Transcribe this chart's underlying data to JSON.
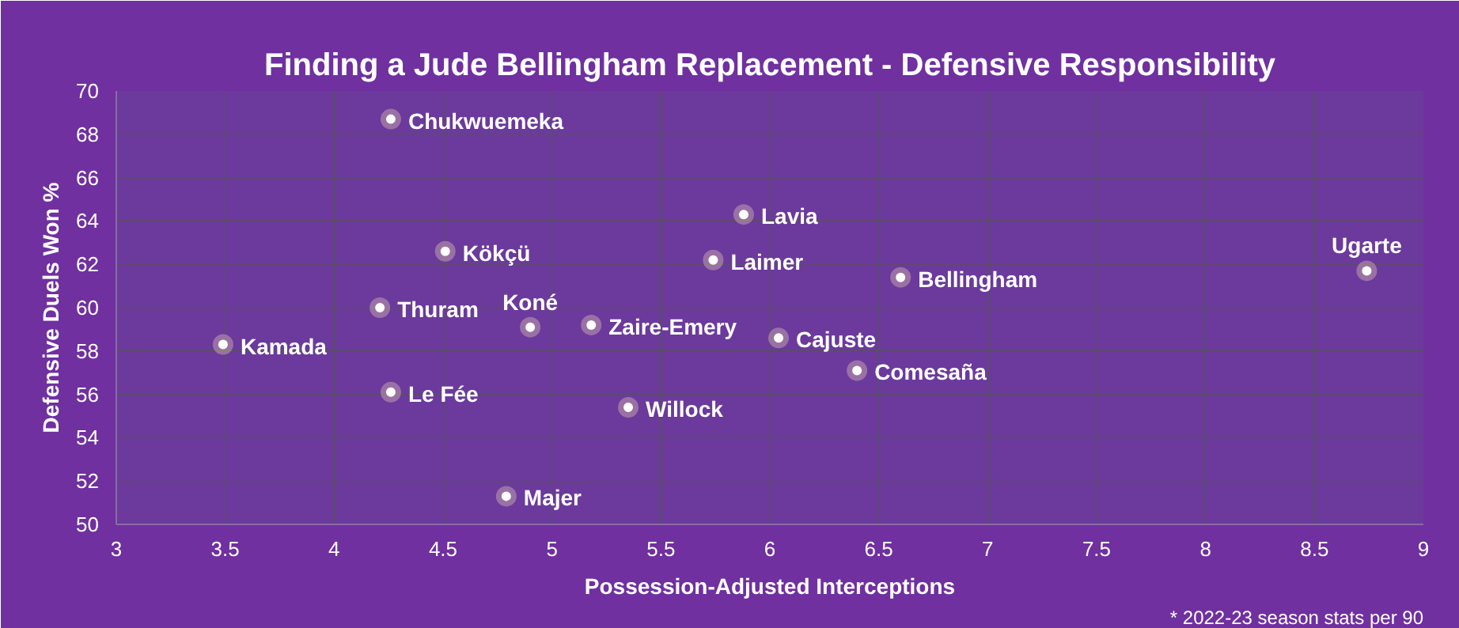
{
  "chart_data": {
    "type": "scatter",
    "title": "Finding a Jude Bellingham Replacement - Defensive Responsibility",
    "xlabel": "Possession-Adjusted Interceptions",
    "ylabel": "Defensive Duels Won %",
    "x": [
      4.26,
      4.51,
      4.21,
      4.9,
      5.18,
      3.49,
      4.26,
      5.35,
      4.79,
      5.88,
      5.74,
      6.6,
      6.04,
      6.4,
      8.74
    ],
    "series": [
      {
        "color": "#ffffff",
        "values": [
          68.7,
          62.6,
          60.0,
          59.1,
          59.2,
          58.3,
          56.1,
          55.4,
          51.3,
          64.3,
          62.2,
          61.4,
          58.6,
          57.1,
          61.7
        ]
      }
    ],
    "annotations": [
      {
        "text": "Chukwuemeka",
        "x": 4.26,
        "y": 68.7
      },
      {
        "text": "Kökçü",
        "x": 4.51,
        "y": 62.6
      },
      {
        "text": "Thuram",
        "x": 4.21,
        "y": 60.0
      },
      {
        "text": "Koné",
        "x": 4.9,
        "y": 59.1
      },
      {
        "text": "Zaire-Emery",
        "x": 5.18,
        "y": 59.2
      },
      {
        "text": "Kamada",
        "x": 3.49,
        "y": 58.3
      },
      {
        "text": "Le Fée",
        "x": 4.26,
        "y": 56.1
      },
      {
        "text": "Willock",
        "x": 5.35,
        "y": 55.4
      },
      {
        "text": "Majer",
        "x": 4.79,
        "y": 51.3
      },
      {
        "text": "Lavia",
        "x": 5.88,
        "y": 64.3
      },
      {
        "text": "Laimer",
        "x": 5.74,
        "y": 62.2
      },
      {
        "text": "Bellingham",
        "x": 6.6,
        "y": 61.4
      },
      {
        "text": "Cajuste",
        "x": 6.04,
        "y": 58.6
      },
      {
        "text": "Comesaña",
        "x": 6.4,
        "y": 57.1
      },
      {
        "text": "Ugarte",
        "x": 8.74,
        "y": 61.7
      },
      "* 2022-23 season stats per 90"
    ],
    "xlim": [
      3,
      9
    ],
    "xticks": [
      3,
      3.5,
      4,
      4.5,
      5,
      5.5,
      6,
      6.5,
      7,
      7.5,
      8,
      8.5,
      9
    ],
    "ylim": [
      50,
      70
    ],
    "yticks": [
      50,
      52,
      54,
      56,
      58,
      60,
      62,
      64,
      66,
      68,
      70
    ],
    "grid": true,
    "marker": "circle"
  }
}
